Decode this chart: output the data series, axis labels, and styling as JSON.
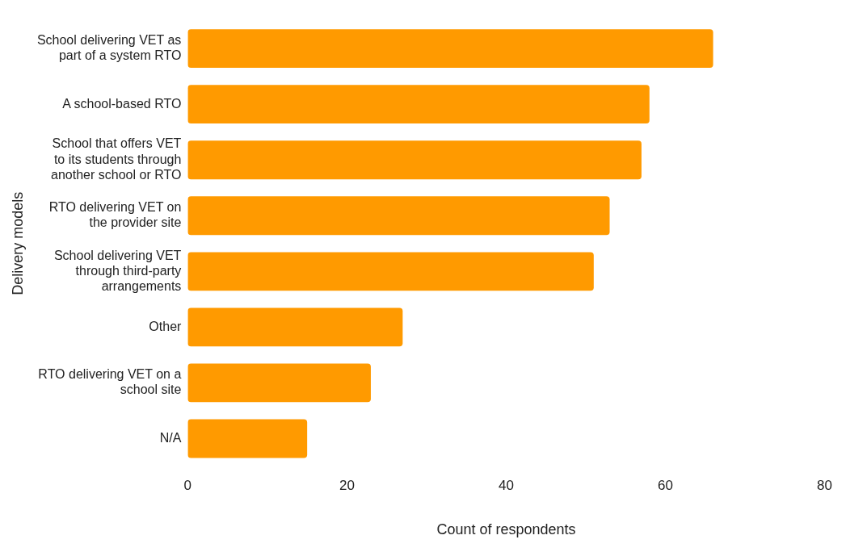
{
  "chart_data": {
    "type": "bar",
    "orientation": "horizontal",
    "xlabel": "Count of respondents",
    "ylabel": "Delivery models",
    "categories": [
      "School delivering VET as part of a system RTO",
      "A school-based RTO",
      "School that offers VET to its students through another school or RTO",
      "RTO delivering VET on the provider site",
      "School delivering VET through third-party arrangements",
      "Other",
      "RTO delivering VET on a school site",
      "N/A"
    ],
    "values": [
      66,
      58,
      57,
      53,
      51,
      27,
      23,
      15
    ],
    "color": "#ff9a00",
    "xlim": [
      0,
      80
    ],
    "xticks": [
      0,
      20,
      40,
      60,
      80
    ],
    "grid": false,
    "legend": false
  }
}
